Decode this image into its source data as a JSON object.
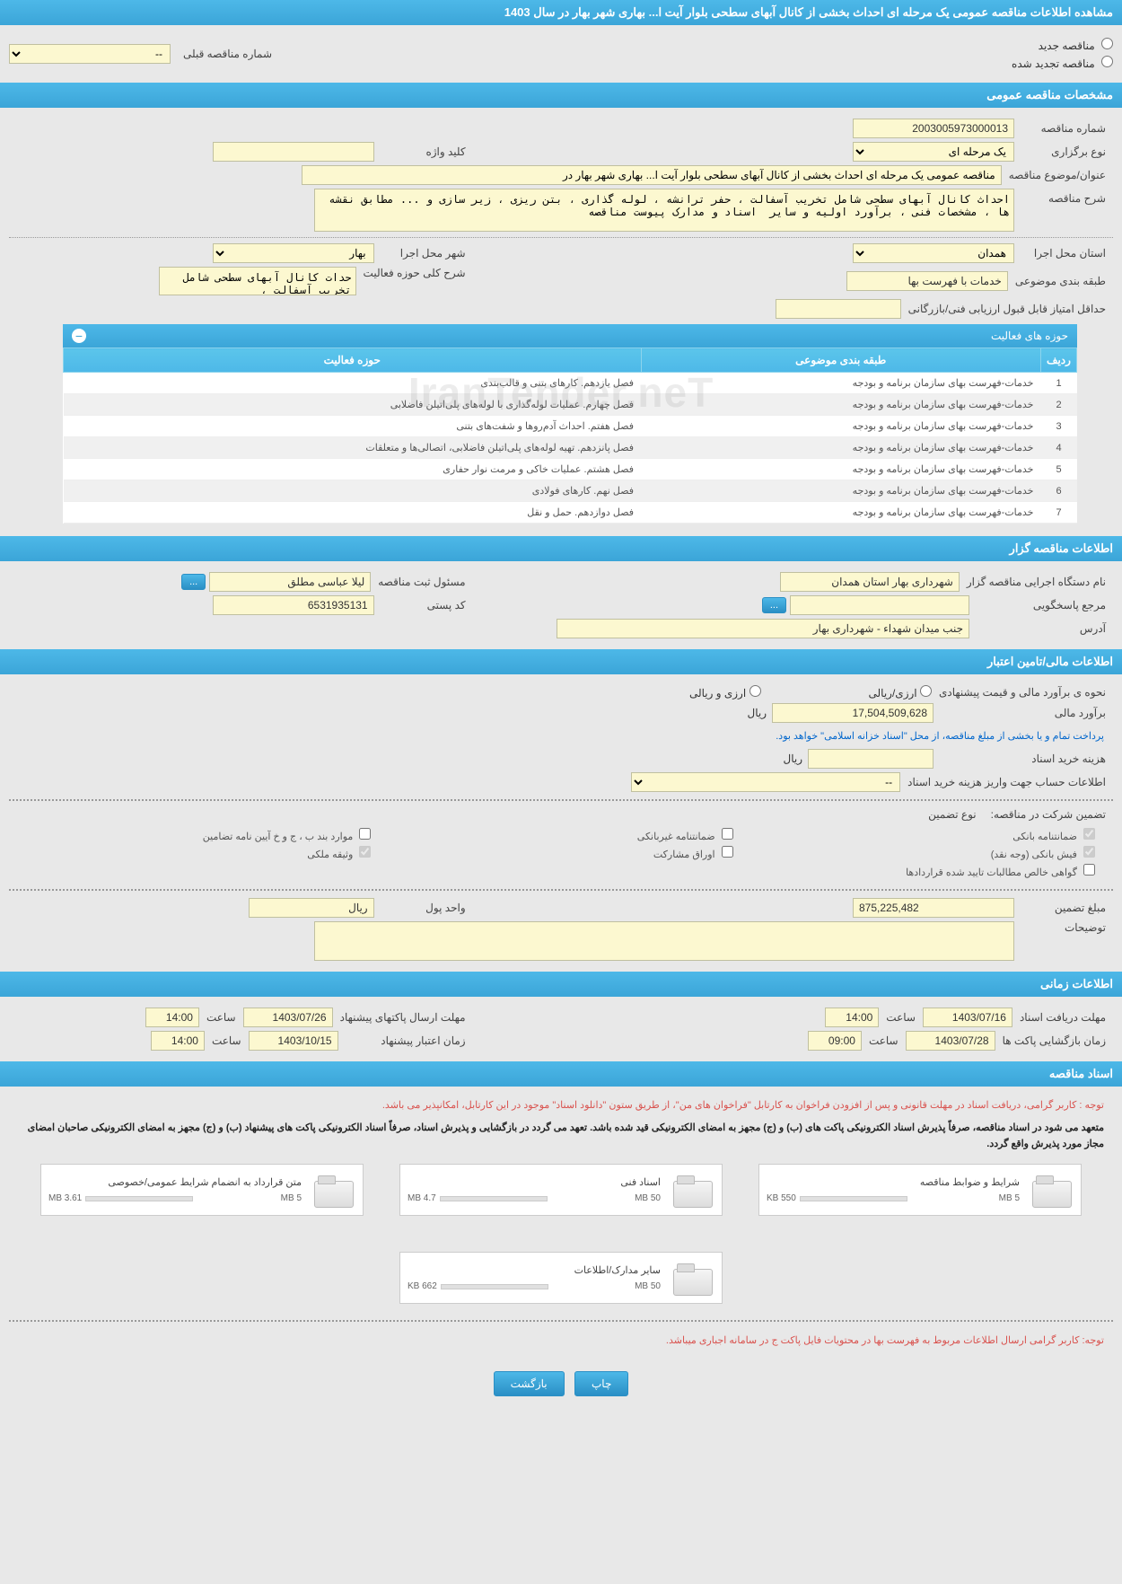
{
  "page": {
    "title": "مشاهده اطلاعات مناقصه عمومی یک مرحله ای احداث بخشی از کانال آبهای سطحی بلوار آیت ا... بهاری شهر بهار در سال 1403"
  },
  "radio": {
    "new_tender": "مناقصه جدید",
    "renewed_tender": "مناقصه تجدید شده",
    "prev_tender_label": "شماره مناقصه قبلی",
    "prev_tender_placeholder": "--"
  },
  "sections": {
    "general": "مشخصات مناقصه عمومی",
    "propagator": "اطلاعات مناقصه گزار",
    "financial": "اطلاعات مالی/تامین اعتبار",
    "timing": "اطلاعات زمانی",
    "docs": "اسناد مناقصه"
  },
  "general": {
    "tender_number_label": "شماره مناقصه",
    "tender_number": "2003005973000013",
    "holding_type_label": "نوع برگزاری",
    "holding_type": "یک مرحله ای",
    "keyword_label": "کلید واژه",
    "keyword": "",
    "subject_label": "عنوان/موضوع مناقصه",
    "subject": "مناقصه عمومی یک مرحله ای احداث بخشی از کانال آبهای سطحی بلوار آیت ا... بهاری شهر بهار در",
    "description_label": "شرح مناقصه",
    "description": "احداث کانال آبهای سطحی شامل تخریب آسفالت ، حفر ترانشه ، لوله گذاری ، بتن ریزی ، زیر سازی و ... مطابق نقشه ها ، مشخصات فنی ، برآورد اولیه و سایر  اسناد و مدارک پیوست مناقصه",
    "province_label": "استان محل اجرا",
    "province": "همدان",
    "city_label": "شهر محل اجرا",
    "city": "بهار",
    "subject_class_label": "طبقه بندی موضوعی",
    "subject_class": "خدمات با فهرست بها",
    "activity_desc_label": "شرح کلی حوزه فعالیت",
    "activity_desc": "حدات کانال آبهای سطحی شامل تخریب آسفالت ،",
    "min_score_label": "حداقل امتیاز قابل قبول ارزیابی فنی/بازرگانی",
    "min_score": ""
  },
  "activity_table": {
    "title": "حوزه های فعالیت",
    "col_row": "ردیف",
    "col_subject": "طبقه بندی موضوعی",
    "col_activity": "حوزه فعالیت",
    "rows": [
      {
        "n": "1",
        "subject": "خدمات-فهرست بهای سازمان برنامه و بودجه",
        "activity": "فصل یازدهم. کارهای بتنی و قالب‌بندی"
      },
      {
        "n": "2",
        "subject": "خدمات-فهرست بهای سازمان برنامه و بودجه",
        "activity": "فصل چهارم. عملیات لوله‌گذاری با لوله‌های پلی‌اتیلن فاضلابی"
      },
      {
        "n": "3",
        "subject": "خدمات-فهرست بهای سازمان برنامه و بودجه",
        "activity": "فصل هفتم. احداث آدم‌روها و شفت‌های بتنی"
      },
      {
        "n": "4",
        "subject": "خدمات-فهرست بهای سازمان برنامه و بودجه",
        "activity": "فصل پانزدهم. تهیه لوله‌های پلی‌اتیلن فاضلابی، اتصالی‌ها و متعلقات"
      },
      {
        "n": "5",
        "subject": "خدمات-فهرست بهای سازمان برنامه و بودجه",
        "activity": "فصل هشتم. عملیات خاکی و مرمت نوار حفاری"
      },
      {
        "n": "6",
        "subject": "خدمات-فهرست بهای سازمان برنامه و بودجه",
        "activity": "فصل نهم. کارهای فولادی"
      },
      {
        "n": "7",
        "subject": "خدمات-فهرست بهای سازمان برنامه و بودجه",
        "activity": "فصل دوازدهم. حمل و نقل"
      }
    ]
  },
  "propagator": {
    "org_label": "نام دستگاه اجرایی مناقصه گزار",
    "org": "شهرداری بهار استان همدان",
    "registrar_label": "مسئول ثبت مناقصه",
    "registrar": "لیلا عباسی مطلق",
    "more": "...",
    "contact_label": "مرجع پاسخگویی",
    "contact": "",
    "postal_label": "کد پستی",
    "postal": "6531935131",
    "address_label": "آدرس",
    "address": "جنب میدان شهداء - شهرداری بهار"
  },
  "financial": {
    "estimate_label": "نحوه ی برآورد مالی و قیمت پیشنهادی",
    "option_rial": "ارزی/ریالی",
    "option_both": "ارزی و ریالی",
    "amount_label": "برآورد مالی",
    "amount": "17,504,509,628",
    "unit": "ریال",
    "payment_note": "پرداخت تمام و یا بخشی از مبلغ مناقصه، از محل \"اسناد خزانه اسلامی\" خواهد بود.",
    "doc_cost_label": "هزینه خرید اسناد",
    "doc_cost": "",
    "doc_cost_unit": "ریال",
    "account_label": "اطلاعات حساب جهت واریز هزینه خرید اسناد",
    "account_placeholder": "--",
    "guarantee_label": "تضمین شرکت در مناقصه:",
    "guarantee_type_label": "نوع تضمین",
    "chk_bank": "ضمانتنامه بانکی",
    "chk_nonbank": "ضمانتنامه غیربانکی",
    "chk_bonds": "موارد بند ب ، ج و خ آیین نامه تضامین",
    "chk_fish": "فیش بانکی (وجه نقد)",
    "chk_stock": "اوراق مشارکت",
    "chk_property": "وثیقه ملکی",
    "chk_receivables": "گواهی خالص مطالبات تایید شده قراردادها",
    "guarantee_amount_label": "مبلغ تضمین",
    "guarantee_amount": "875,225,482",
    "currency_label": "واحد پول",
    "currency": "ریال",
    "notes_label": "توضیحات",
    "notes": ""
  },
  "timing": {
    "doc_deadline_label": "مهلت دریافت اسناد",
    "doc_deadline_date": "1403/07/16",
    "time_label": "ساعت",
    "doc_deadline_time": "14:00",
    "bid_deadline_label": "مهلت ارسال پاکتهای پیشنهاد",
    "bid_deadline_date": "1403/07/26",
    "bid_deadline_time": "14:00",
    "opening_label": "زمان بازگشایی پاکت ها",
    "opening_date": "1403/07/28",
    "opening_time": "09:00",
    "validity_label": "زمان اعتبار پیشنهاد",
    "validity_date": "1403/10/15",
    "validity_time": "14:00"
  },
  "docs": {
    "note1": "توجه : کاربر گرامی، دریافت اسناد در مهلت قانونی و پس از افزودن فراخوان به کارتابل \"فراخوان های من\"، از طریق ستون \"دانلود اسناد\" موجود در این کارتابل، امکانپذیر می باشد.",
    "note2": "متعهد می شود در اسناد مناقصه، صرفاً پذیرش اسناد الکترونیکی پاکت های (ب) و (ج) مجهز به امضای الکترونیکی قید شده باشد. تعهد می گردد در بازگشایی و پذیرش اسناد، صرفاً اسناد الکترونیکی پاکت های پیشنهاد (ب) و (ج) مجهز به امضای الکترونیکی صاحبان امضای مجاز مورد پذیرش واقع گردد.",
    "note3": "توجه: کاربر گرامی ارسال اطلاعات مربوط به فهرست بها در محتویات فایل پاکت ج در سامانه اجباری میباشد.",
    "files": [
      {
        "title": "شرایط و ضوابط مناقصه",
        "used": "550 KB",
        "limit": "5 MB",
        "pct": 11
      },
      {
        "title": "اسناد فنی",
        "used": "4.7 MB",
        "limit": "50 MB",
        "pct": 9
      },
      {
        "title": "متن قرارداد به انضمام شرایط عمومی/خصوصی",
        "used": "3.61 MB",
        "limit": "5 MB",
        "pct": 72
      },
      {
        "title": "سایر مدارک/اطلاعات",
        "used": "662 KB",
        "limit": "50 MB",
        "pct": 1
      }
    ]
  },
  "buttons": {
    "print": "چاپ",
    "back": "بازگشت"
  },
  "watermark": "IranTender.neT"
}
